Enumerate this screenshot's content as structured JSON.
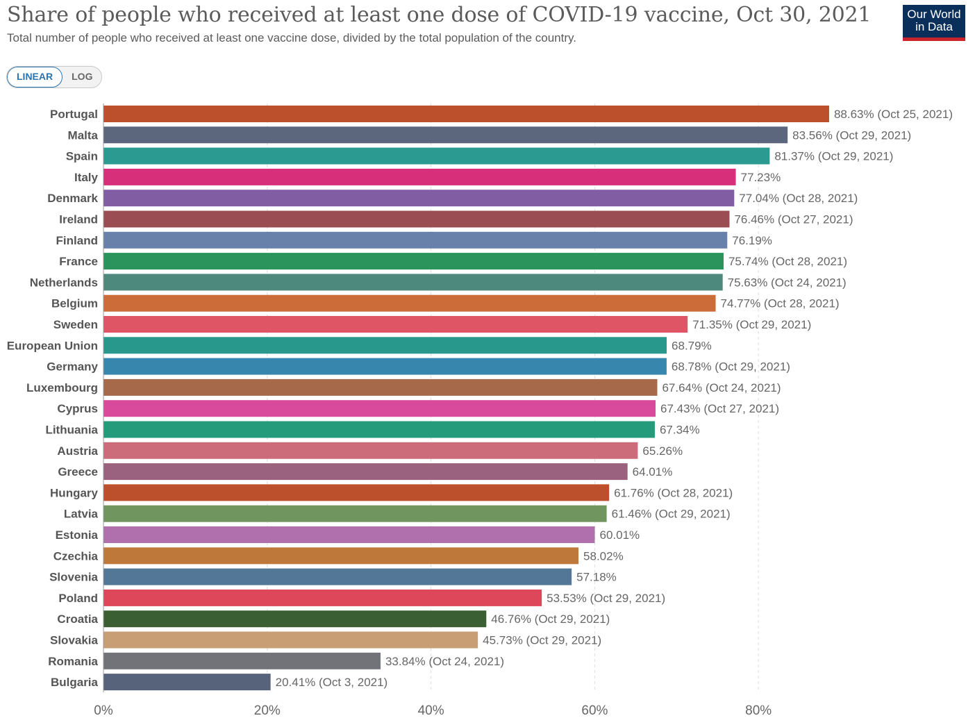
{
  "header": {
    "title": "Share of people who received at least one dose of COVID-19 vaccine, Oct 30, 2021",
    "subtitle": "Total number of people who received at least one vaccine dose, divided by the total population of the country."
  },
  "logo": {
    "line1": "Our World",
    "line2": "in Data"
  },
  "scale_toggle": {
    "linear_label": "LINEAR",
    "log_label": "LOG",
    "selected": "LINEAR"
  },
  "chart_data": {
    "type": "bar",
    "orientation": "horizontal",
    "title": "Share of people who received at least one dose of COVID-19 vaccine, Oct 30, 2021",
    "xlabel": "",
    "ylabel": "",
    "xlim": [
      0,
      90
    ],
    "x_ticks": [
      0,
      20,
      40,
      60,
      80
    ],
    "x_tick_labels": [
      "0%",
      "20%",
      "40%",
      "60%",
      "80%"
    ],
    "grid": true,
    "bars": [
      {
        "category": "Portugal",
        "value": 88.63,
        "label": "88.63% (Oct 25, 2021)",
        "color": "#bc4f2c"
      },
      {
        "category": "Malta",
        "value": 83.56,
        "label": "83.56% (Oct 29, 2021)",
        "color": "#5c677d"
      },
      {
        "category": "Spain",
        "value": 81.37,
        "label": "81.37% (Oct 29, 2021)",
        "color": "#2b9a91"
      },
      {
        "category": "Italy",
        "value": 77.23,
        "label": "77.23%",
        "color": "#d72f7a"
      },
      {
        "category": "Denmark",
        "value": 77.04,
        "label": "77.04% (Oct 28, 2021)",
        "color": "#815da3"
      },
      {
        "category": "Ireland",
        "value": 76.46,
        "label": "76.46% (Oct 27, 2021)",
        "color": "#9a4e54"
      },
      {
        "category": "Finland",
        "value": 76.19,
        "label": "76.19%",
        "color": "#6881ab"
      },
      {
        "category": "France",
        "value": 75.74,
        "label": "75.74% (Oct 28, 2021)",
        "color": "#2a945c"
      },
      {
        "category": "Netherlands",
        "value": 75.63,
        "label": "75.63% (Oct 24, 2021)",
        "color": "#4d8a7d"
      },
      {
        "category": "Belgium",
        "value": 74.77,
        "label": "74.77% (Oct 28, 2021)",
        "color": "#cc6d39"
      },
      {
        "category": "Sweden",
        "value": 71.35,
        "label": "71.35% (Oct 29, 2021)",
        "color": "#df5566"
      },
      {
        "category": "European Union",
        "value": 68.79,
        "label": "68.79%",
        "color": "#28978c"
      },
      {
        "category": "Germany",
        "value": 68.78,
        "label": "68.78% (Oct 29, 2021)",
        "color": "#3686ad"
      },
      {
        "category": "Luxembourg",
        "value": 67.64,
        "label": "67.64% (Oct 24, 2021)",
        "color": "#a6694a"
      },
      {
        "category": "Cyprus",
        "value": 67.43,
        "label": "67.43% (Oct 27, 2021)",
        "color": "#d94a9c"
      },
      {
        "category": "Lithuania",
        "value": 67.34,
        "label": "67.34%",
        "color": "#249b7a"
      },
      {
        "category": "Austria",
        "value": 65.26,
        "label": "65.26%",
        "color": "#cc6b7a"
      },
      {
        "category": "Greece",
        "value": 64.01,
        "label": "64.01%",
        "color": "#9a627e"
      },
      {
        "category": "Hungary",
        "value": 61.76,
        "label": "61.76% (Oct 28, 2021)",
        "color": "#bc4f2c"
      },
      {
        "category": "Latvia",
        "value": 61.46,
        "label": "61.46% (Oct 29, 2021)",
        "color": "#70955f"
      },
      {
        "category": "Estonia",
        "value": 60.01,
        "label": "60.01%",
        "color": "#b070ae"
      },
      {
        "category": "Czechia",
        "value": 58.02,
        "label": "58.02%",
        "color": "#be7839"
      },
      {
        "category": "Slovenia",
        "value": 57.18,
        "label": "57.18%",
        "color": "#537797"
      },
      {
        "category": "Poland",
        "value": 53.53,
        "label": "53.53% (Oct 29, 2021)",
        "color": "#de4659"
      },
      {
        "category": "Croatia",
        "value": 46.76,
        "label": "46.76% (Oct 29, 2021)",
        "color": "#3a5f32"
      },
      {
        "category": "Slovakia",
        "value": 45.73,
        "label": "45.73% (Oct 29, 2021)",
        "color": "#c89f74"
      },
      {
        "category": "Romania",
        "value": 33.84,
        "label": "33.84% (Oct 24, 2021)",
        "color": "#717378"
      },
      {
        "category": "Bulgaria",
        "value": 20.41,
        "label": "20.41% (Oct 3, 2021)",
        "color": "#57637a"
      }
    ]
  }
}
